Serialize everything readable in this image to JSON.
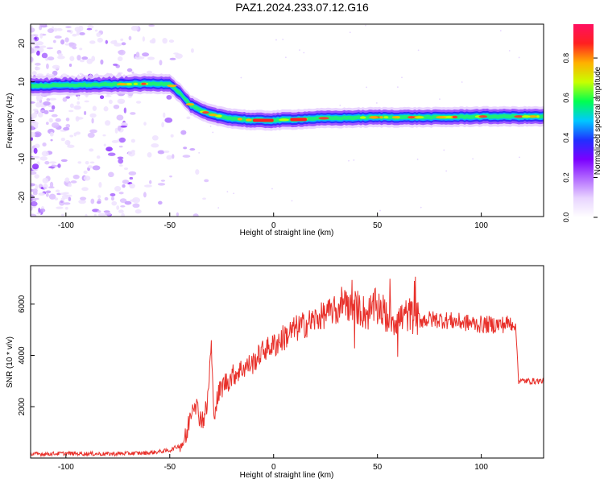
{
  "title": "PAZ1.2024.233.07.12.G16",
  "chart_data": [
    {
      "type": "heatmap",
      "xlabel": "Height of straight line (km)",
      "ylabel": "Frequency (Hz)",
      "xlim": [
        -117,
        130
      ],
      "ylim": [
        -25,
        25
      ],
      "x_ticks": [
        -100,
        -50,
        0,
        50,
        100
      ],
      "y_ticks": [
        -20,
        -10,
        0,
        10,
        20
      ],
      "colorbar": {
        "label": "Normalized spectral amplitude",
        "range": [
          0.0,
          0.97
        ],
        "ticks": [
          "0.0",
          "0.2",
          "0.4",
          "0.6",
          "0.8"
        ],
        "colors": [
          "#ffffff",
          "#e8d4ff",
          "#b36bff",
          "#7b00ff",
          "#2030ff",
          "#00c8ff",
          "#00ff50",
          "#c8ff00",
          "#ffb000",
          "#ff2020",
          "#ff1060"
        ]
      },
      "ridge": {
        "description_points_x": [
          -117,
          -60,
          -50,
          -45,
          -40,
          -35,
          -30,
          -20,
          -10,
          0,
          20,
          50,
          80,
          100,
          130
        ],
        "frequency_y": [
          9,
          9.5,
          9.5,
          7,
          4,
          2.5,
          1.5,
          0.5,
          0,
          0,
          0.5,
          0.8,
          0.8,
          1,
          1
        ]
      },
      "grid": false
    },
    {
      "type": "line",
      "xlabel": "Height of straight line (km)",
      "ylabel": "SNR (10 * v/v)",
      "xlim": [
        -117,
        130
      ],
      "ylim": [
        0,
        7500
      ],
      "x_ticks": [
        -100,
        -50,
        0,
        50,
        100
      ],
      "y_ticks": [
        2000,
        4000,
        6000
      ],
      "color": "#e8302a",
      "series": [
        {
          "x": [
            -117,
            -100,
            -80,
            -60,
            -50,
            -45,
            -42,
            -40,
            -38,
            -36,
            -34,
            -32,
            -30,
            -29,
            -28,
            -26,
            -24,
            -22,
            -20,
            -15,
            -10,
            -5,
            0,
            5,
            10,
            15,
            20,
            25,
            30,
            33,
            35,
            37,
            40,
            45,
            50,
            55,
            60,
            65,
            70,
            80,
            90,
            100,
            110,
            116,
            117,
            118,
            125,
            130
          ],
          "y": [
            150,
            180,
            160,
            200,
            300,
            500,
            800,
            1800,
            2300,
            1700,
            1500,
            2000,
            4400,
            1900,
            2000,
            2600,
            2900,
            3000,
            3200,
            3500,
            3700,
            4200,
            4400,
            4700,
            5000,
            5200,
            5400,
            5600,
            5800,
            6100,
            6200,
            5800,
            5900,
            5600,
            6000,
            5500,
            5400,
            5600,
            5400,
            5400,
            5300,
            5200,
            5200,
            5300,
            4500,
            3000,
            3000,
            3000
          ]
        }
      ],
      "grid": false
    }
  ]
}
